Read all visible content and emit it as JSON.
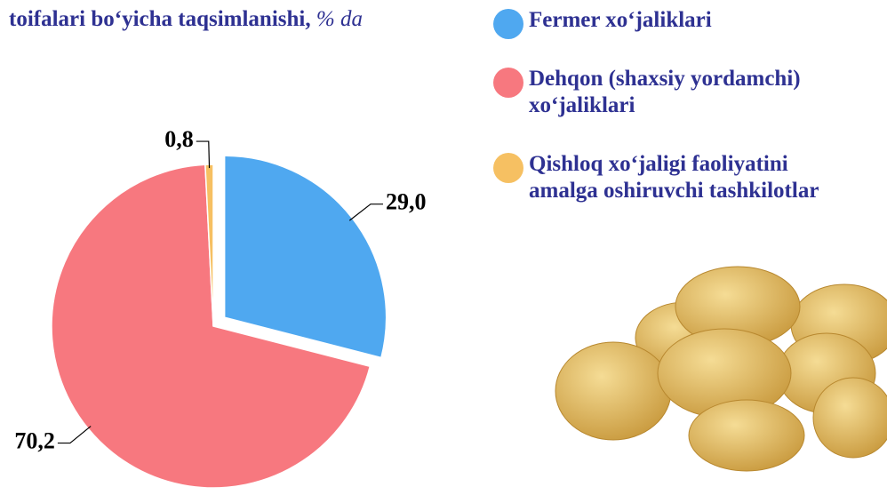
{
  "chart_data": {
    "type": "pie",
    "title": "toifalari bo‘yicha taqsimlanishi,",
    "title_unit": "% da",
    "categories": [
      "Fermer xo‘jaliklari",
      "Dehqon (shaxsiy yordamchi) xo‘jaliklari",
      "Qishloq xo‘jaligi faoliyatini amalga oshiruvchi tashkilotlar"
    ],
    "values": [
      29.0,
      70.2,
      0.8
    ],
    "value_labels": [
      "29,0",
      "70,2",
      "0,8"
    ],
    "colors": [
      "#4fa8f0",
      "#f7787f",
      "#f6c062"
    ]
  }
}
